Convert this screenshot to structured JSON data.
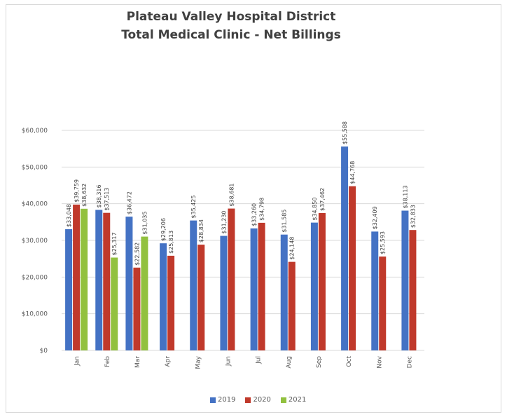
{
  "chart_data": {
    "type": "bar",
    "title": "Plateau Valley Hospital District",
    "subtitle": "Total Medical Clinic  - Net Billings",
    "xlabel": "",
    "ylabel": "",
    "ylim": [
      0,
      60000
    ],
    "yticks": [
      0,
      10000,
      20000,
      30000,
      40000,
      50000,
      60000
    ],
    "ytick_labels": [
      "$0",
      "$10,000",
      "$20,000",
      "$30,000",
      "$40,000",
      "$50,000",
      "$60,000"
    ],
    "categories": [
      "Jan",
      "Feb",
      "Mar",
      "Apr",
      "May",
      "Jun",
      "Jul",
      "Aug",
      "Sep",
      "Oct",
      "Nov",
      "Dec"
    ],
    "series": [
      {
        "name": "2019",
        "color": "#4472c4",
        "values": [
          33048,
          38316,
          36472,
          29206,
          35425,
          31230,
          33260,
          31585,
          34850,
          55588,
          32409,
          38113
        ],
        "labels": [
          "$33,048",
          "$38,316",
          "$36,472",
          "$29,206",
          "$35,425",
          "$31,230",
          "$33,260",
          "$31,585",
          "$34,850",
          "$55,588",
          "$32,409",
          "$38,113"
        ]
      },
      {
        "name": "2020",
        "color": "#c0392b",
        "values": [
          39759,
          37513,
          22582,
          25813,
          28834,
          38681,
          34798,
          24148,
          37462,
          44768,
          25593,
          32833
        ],
        "labels": [
          "$39,759",
          "$37,513",
          "$22,582",
          "$25,813",
          "$28,834",
          "$38,681",
          "$34,798",
          "$24,148",
          "$37,462",
          "$44,768",
          "$25,593",
          "$32,833"
        ]
      },
      {
        "name": "2021",
        "color": "#92c13f",
        "values": [
          38632,
          25317,
          31035,
          null,
          null,
          null,
          null,
          null,
          null,
          null,
          null,
          null
        ],
        "labels": [
          "$38,632",
          "$25,317",
          "$31,035",
          "",
          "",
          "",
          "",
          "",
          "",
          "",
          "",
          ""
        ]
      }
    ],
    "grid": true,
    "legend_position": "bottom"
  }
}
